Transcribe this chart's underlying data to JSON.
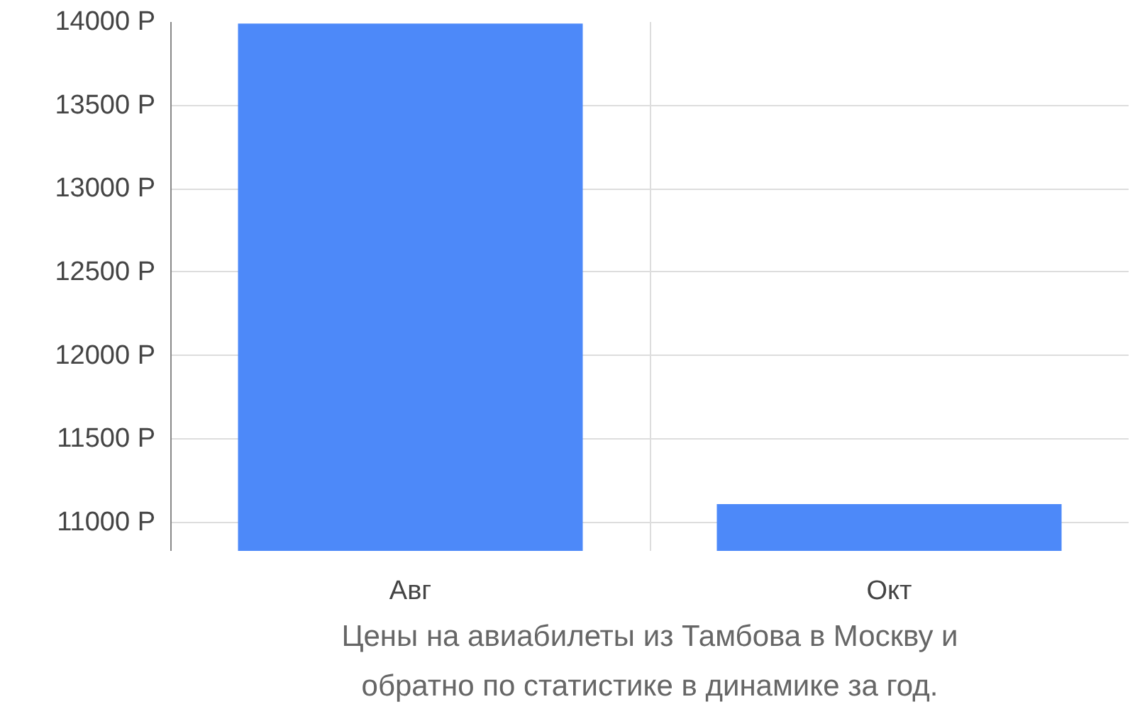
{
  "chart_data": {
    "type": "bar",
    "title": "Цены на авиабилеты из Тамбова в Москву и обратно по статистике в динамике за год.",
    "categories": [
      "Авг",
      "Окт"
    ],
    "values": [
      13990,
      11110
    ],
    "color": "#4d89f9",
    "ylim": [
      10830,
      14000
    ],
    "yticks": [
      {
        "value": 11000,
        "label": "11000 Р"
      },
      {
        "value": 11500,
        "label": "11500 Р"
      },
      {
        "value": 12000,
        "label": "12000 Р"
      },
      {
        "value": 12500,
        "label": "12500 Р"
      },
      {
        "value": 13000,
        "label": "13000 Р"
      },
      {
        "value": 13500,
        "label": "13500 Р"
      },
      {
        "value": 14000,
        "label": "14000 Р"
      }
    ],
    "grid": true
  }
}
